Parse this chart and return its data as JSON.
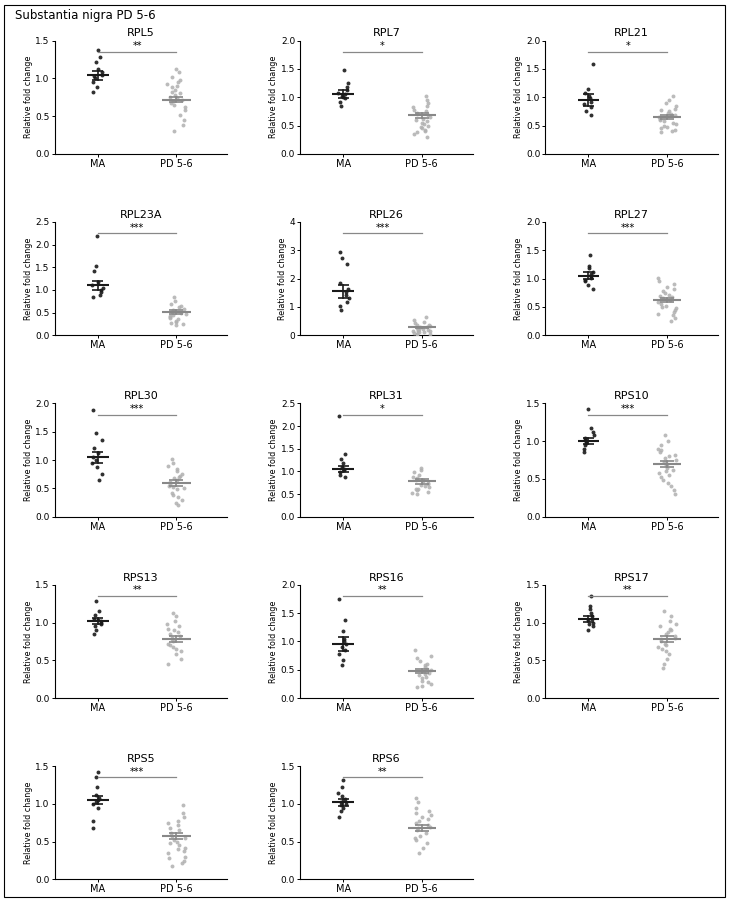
{
  "title": "Substantia nigra PD 5-6",
  "panels": [
    {
      "gene": "RPL5",
      "significance": "**",
      "ylim": [
        0,
        1.5
      ],
      "yticks": [
        0,
        0.5,
        1.0,
        1.5
      ],
      "ma_mean": 1.04,
      "ma_sem": 0.06,
      "pd_mean": 0.72,
      "pd_sem": 0.03,
      "ma_points": [
        1.38,
        1.28,
        1.22,
        1.12,
        1.08,
        1.05,
        1.03,
        1.0,
        0.95,
        0.88,
        0.82
      ],
      "pd_points": [
        1.12,
        1.08,
        1.02,
        0.98,
        0.95,
        0.92,
        0.9,
        0.88,
        0.85,
        0.82,
        0.8,
        0.78,
        0.76,
        0.74,
        0.72,
        0.7,
        0.68,
        0.65,
        0.62,
        0.58,
        0.52,
        0.45,
        0.38,
        0.3
      ]
    },
    {
      "gene": "RPL7",
      "significance": "*",
      "ylim": [
        0,
        2.0
      ],
      "yticks": [
        0,
        0.5,
        1.0,
        1.5,
        2.0
      ],
      "ma_mean": 1.05,
      "ma_sem": 0.07,
      "pd_mean": 0.68,
      "pd_sem": 0.04,
      "ma_points": [
        1.48,
        1.25,
        1.18,
        1.12,
        1.08,
        1.05,
        1.02,
        1.0,
        0.98,
        0.92,
        0.85
      ],
      "pd_points": [
        1.02,
        0.95,
        0.9,
        0.85,
        0.82,
        0.78,
        0.75,
        0.72,
        0.7,
        0.68,
        0.65,
        0.62,
        0.6,
        0.58,
        0.55,
        0.52,
        0.5,
        0.48,
        0.45,
        0.42,
        0.4,
        0.38,
        0.35,
        0.3
      ]
    },
    {
      "gene": "RPL21",
      "significance": "*",
      "ylim": [
        0,
        2.0
      ],
      "yticks": [
        0,
        0.5,
        1.0,
        1.5,
        2.0
      ],
      "ma_mean": 0.95,
      "ma_sem": 0.1,
      "pd_mean": 0.65,
      "pd_sem": 0.04,
      "ma_points": [
        1.58,
        1.15,
        1.08,
        1.02,
        0.98,
        0.92,
        0.88,
        0.82,
        0.75,
        0.68
      ],
      "pd_points": [
        1.02,
        0.95,
        0.9,
        0.85,
        0.8,
        0.78,
        0.75,
        0.72,
        0.7,
        0.68,
        0.65,
        0.62,
        0.6,
        0.58,
        0.55,
        0.52,
        0.5,
        0.48,
        0.45,
        0.42,
        0.4,
        0.38
      ]
    },
    {
      "gene": "RPL23A",
      "significance": "***",
      "ylim": [
        0,
        2.5
      ],
      "yticks": [
        0,
        0.5,
        1.0,
        1.5,
        2.0,
        2.5
      ],
      "ma_mean": 1.1,
      "ma_sem": 0.1,
      "pd_mean": 0.52,
      "pd_sem": 0.04,
      "ma_points": [
        2.18,
        1.52,
        1.42,
        1.18,
        1.1,
        1.05,
        1.0,
        0.95,
        0.9,
        0.85
      ],
      "pd_points": [
        0.85,
        0.75,
        0.7,
        0.65,
        0.62,
        0.58,
        0.55,
        0.52,
        0.5,
        0.48,
        0.45,
        0.42,
        0.4,
        0.38,
        0.35,
        0.32,
        0.3,
        0.28,
        0.25,
        0.22
      ]
    },
    {
      "gene": "RPL26",
      "significance": "***",
      "ylim": [
        0,
        4
      ],
      "yticks": [
        0,
        1,
        2,
        3,
        4
      ],
      "ma_mean": 1.55,
      "ma_sem": 0.22,
      "pd_mean": 0.28,
      "pd_sem": 0.03,
      "ma_points": [
        2.95,
        2.72,
        2.52,
        1.85,
        1.65,
        1.52,
        1.42,
        1.32,
        1.18,
        1.05,
        0.88
      ],
      "pd_points": [
        0.65,
        0.55,
        0.48,
        0.42,
        0.38,
        0.35,
        0.32,
        0.3,
        0.28,
        0.26,
        0.24,
        0.22,
        0.2,
        0.18,
        0.16,
        0.15,
        0.14,
        0.12,
        0.1,
        0.08,
        0.06,
        0.05,
        0.04
      ]
    },
    {
      "gene": "RPL27",
      "significance": "***",
      "ylim": [
        0,
        2.0
      ],
      "yticks": [
        0,
        0.5,
        1.0,
        1.5,
        2.0
      ],
      "ma_mean": 1.05,
      "ma_sem": 0.06,
      "pd_mean": 0.62,
      "pd_sem": 0.04,
      "ma_points": [
        1.42,
        1.22,
        1.18,
        1.12,
        1.08,
        1.05,
        1.02,
        0.98,
        0.95,
        0.88,
        0.82
      ],
      "pd_points": [
        1.02,
        0.95,
        0.9,
        0.85,
        0.82,
        0.78,
        0.75,
        0.72,
        0.7,
        0.68,
        0.65,
        0.62,
        0.58,
        0.55,
        0.52,
        0.5,
        0.48,
        0.45,
        0.42,
        0.38,
        0.35,
        0.3,
        0.25
      ]
    },
    {
      "gene": "RPL30",
      "significance": "***",
      "ylim": [
        0,
        2.0
      ],
      "yticks": [
        0,
        0.5,
        1.0,
        1.5,
        2.0
      ],
      "ma_mean": 1.05,
      "ma_sem": 0.1,
      "pd_mean": 0.6,
      "pd_sem": 0.05,
      "ma_points": [
        1.88,
        1.48,
        1.35,
        1.22,
        1.12,
        1.05,
        1.0,
        0.95,
        0.88,
        0.75,
        0.65
      ],
      "pd_points": [
        1.02,
        0.95,
        0.9,
        0.85,
        0.8,
        0.75,
        0.72,
        0.7,
        0.68,
        0.65,
        0.62,
        0.58,
        0.55,
        0.52,
        0.5,
        0.48,
        0.42,
        0.38,
        0.35,
        0.3,
        0.25,
        0.2
      ]
    },
    {
      "gene": "RPL31",
      "significance": "*",
      "ylim": [
        0,
        2.5
      ],
      "yticks": [
        0,
        0.5,
        1.0,
        1.5,
        2.0,
        2.5
      ],
      "ma_mean": 1.05,
      "ma_sem": 0.07,
      "pd_mean": 0.78,
      "pd_sem": 0.05,
      "ma_points": [
        2.22,
        1.38,
        1.28,
        1.18,
        1.1,
        1.05,
        1.02,
        0.98,
        0.92,
        0.88
      ],
      "pd_points": [
        1.08,
        1.02,
        0.98,
        0.92,
        0.88,
        0.85,
        0.82,
        0.8,
        0.78,
        0.75,
        0.72,
        0.7,
        0.68,
        0.65,
        0.62,
        0.6,
        0.58,
        0.55,
        0.52,
        0.5
      ]
    },
    {
      "gene": "RPS10",
      "significance": "***",
      "ylim": [
        0,
        1.5
      ],
      "yticks": [
        0,
        0.5,
        1.0,
        1.5
      ],
      "ma_mean": 1.0,
      "ma_sem": 0.04,
      "pd_mean": 0.7,
      "pd_sem": 0.04,
      "ma_points": [
        1.42,
        1.18,
        1.12,
        1.08,
        1.04,
        1.02,
        1.0,
        0.98,
        0.95,
        0.9,
        0.85
      ],
      "pd_points": [
        1.08,
        1.0,
        0.95,
        0.9,
        0.88,
        0.85,
        0.82,
        0.8,
        0.78,
        0.75,
        0.72,
        0.7,
        0.68,
        0.65,
        0.62,
        0.6,
        0.58,
        0.55,
        0.52,
        0.48,
        0.45,
        0.4,
        0.35,
        0.3
      ]
    },
    {
      "gene": "RPS13",
      "significance": "**",
      "ylim": [
        0,
        1.5
      ],
      "yticks": [
        0,
        0.5,
        1.0,
        1.5
      ],
      "ma_mean": 1.02,
      "ma_sem": 0.04,
      "pd_mean": 0.78,
      "pd_sem": 0.04,
      "ma_points": [
        1.28,
        1.15,
        1.1,
        1.05,
        1.03,
        1.02,
        1.0,
        0.98,
        0.95,
        0.9,
        0.85
      ],
      "pd_points": [
        1.12,
        1.08,
        1.02,
        0.98,
        0.95,
        0.92,
        0.9,
        0.88,
        0.85,
        0.82,
        0.8,
        0.78,
        0.75,
        0.72,
        0.7,
        0.68,
        0.65,
        0.62,
        0.58,
        0.52,
        0.45
      ]
    },
    {
      "gene": "RPS16",
      "significance": "**",
      "ylim": [
        0,
        2.0
      ],
      "yticks": [
        0,
        0.5,
        1.0,
        1.5,
        2.0
      ],
      "ma_mean": 0.95,
      "ma_sem": 0.12,
      "pd_mean": 0.48,
      "pd_sem": 0.04,
      "ma_points": [
        1.75,
        1.38,
        1.18,
        1.05,
        1.0,
        0.95,
        0.9,
        0.85,
        0.78,
        0.68,
        0.58
      ],
      "pd_points": [
        0.85,
        0.75,
        0.7,
        0.65,
        0.6,
        0.58,
        0.55,
        0.52,
        0.5,
        0.48,
        0.45,
        0.42,
        0.4,
        0.38,
        0.35,
        0.3,
        0.28,
        0.25,
        0.22,
        0.2
      ]
    },
    {
      "gene": "RPS17",
      "significance": "**",
      "ylim": [
        0,
        1.5
      ],
      "yticks": [
        0,
        0.5,
        1.0,
        1.5
      ],
      "ma_mean": 1.05,
      "ma_sem": 0.04,
      "pd_mean": 0.78,
      "pd_sem": 0.04,
      "ma_points": [
        1.35,
        1.22,
        1.18,
        1.12,
        1.08,
        1.05,
        1.03,
        1.0,
        0.98,
        0.95,
        0.9
      ],
      "pd_points": [
        1.15,
        1.08,
        1.02,
        0.98,
        0.95,
        0.92,
        0.9,
        0.88,
        0.85,
        0.82,
        0.8,
        0.78,
        0.75,
        0.72,
        0.7,
        0.68,
        0.65,
        0.62,
        0.58,
        0.52,
        0.45,
        0.4
      ]
    },
    {
      "gene": "RPS5",
      "significance": "***",
      "ylim": [
        0,
        1.5
      ],
      "yticks": [
        0,
        0.5,
        1.0,
        1.5
      ],
      "ma_mean": 1.05,
      "ma_sem": 0.05,
      "pd_mean": 0.57,
      "pd_sem": 0.04,
      "ma_points": [
        1.42,
        1.35,
        1.22,
        1.12,
        1.08,
        1.05,
        1.02,
        1.0,
        0.95,
        0.78,
        0.68
      ],
      "pd_points": [
        0.98,
        0.88,
        0.82,
        0.78,
        0.75,
        0.72,
        0.68,
        0.65,
        0.62,
        0.58,
        0.55,
        0.52,
        0.5,
        0.48,
        0.45,
        0.42,
        0.4,
        0.38,
        0.35,
        0.3,
        0.28,
        0.25,
        0.22,
        0.18
      ]
    },
    {
      "gene": "RPS6",
      "significance": "**",
      "ylim": [
        0,
        1.5
      ],
      "yticks": [
        0,
        0.5,
        1.0,
        1.5
      ],
      "ma_mean": 1.02,
      "ma_sem": 0.05,
      "pd_mean": 0.68,
      "pd_sem": 0.04,
      "ma_points": [
        1.32,
        1.22,
        1.15,
        1.1,
        1.06,
        1.03,
        1.0,
        0.98,
        0.95,
        0.9,
        0.82
      ],
      "pd_points": [
        1.08,
        1.02,
        0.95,
        0.9,
        0.88,
        0.85,
        0.82,
        0.8,
        0.78,
        0.75,
        0.72,
        0.7,
        0.68,
        0.65,
        0.62,
        0.58,
        0.55,
        0.52,
        0.48,
        0.42,
        0.35
      ]
    }
  ],
  "layout": [
    3,
    3,
    3,
    3,
    2
  ],
  "ma_color": "#1a1a1a",
  "pd_color": "#b0b0b0",
  "bar_color_ma": "#1a1a1a",
  "bar_color_pd": "#888888",
  "sig_line_color": "#888888",
  "ylabel": "Relative fold change",
  "xlabel_ma": "MA",
  "xlabel_pd": "PD 5-6"
}
